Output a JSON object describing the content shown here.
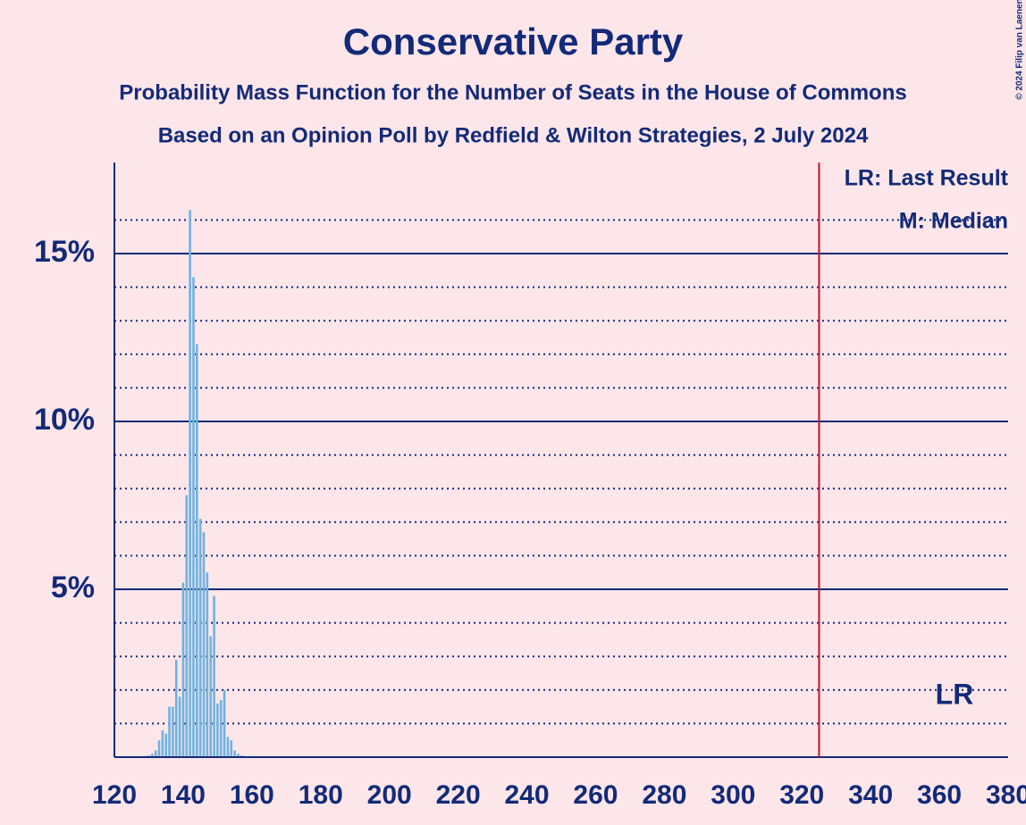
{
  "chart_data": {
    "type": "bar",
    "title": "Conservative Party",
    "subtitles": [
      "Probability Mass Function for the Number of Seats in the House of Commons",
      "Based on an Opinion Poll by Redfield & Wilton Strategies, 2 July 2024"
    ],
    "credit": "© 2024 Filip van Laenen",
    "x": [
      128,
      129,
      130,
      131,
      132,
      133,
      134,
      135,
      136,
      137,
      138,
      139,
      140,
      141,
      142,
      143,
      144,
      145,
      146,
      147,
      148,
      149,
      150,
      151,
      152,
      153,
      154,
      155,
      156,
      157,
      158,
      159,
      160
    ],
    "values": [
      0.02,
      0.03,
      0.05,
      0.1,
      0.2,
      0.5,
      0.8,
      0.7,
      1.5,
      1.5,
      2.9,
      1.8,
      5.2,
      7.8,
      16.3,
      14.3,
      12.3,
      7.1,
      6.7,
      5.5,
      3.6,
      4.8,
      1.6,
      1.7,
      2.0,
      0.6,
      0.5,
      0.2,
      0.1,
      0.05,
      0.03,
      0.02,
      0.01
    ],
    "color": "#6fb3e0",
    "xlim": [
      120,
      380
    ],
    "xticks": [
      120,
      140,
      160,
      180,
      200,
      220,
      240,
      260,
      280,
      300,
      320,
      340,
      360,
      380
    ],
    "ylim": [
      0,
      17.5
    ],
    "yticks": [
      {
        "value": 5,
        "label": "5%"
      },
      {
        "value": 10,
        "label": "10%"
      },
      {
        "value": 15,
        "label": "15%"
      }
    ],
    "minor_yticks": [
      1,
      2,
      3,
      4,
      6,
      7,
      8,
      9,
      11,
      12,
      13,
      14,
      16
    ],
    "last_result": {
      "value": 325,
      "label": "LR",
      "color": "#c8102e"
    },
    "legend": [
      "LR: Last Result",
      "M: Median"
    ]
  }
}
